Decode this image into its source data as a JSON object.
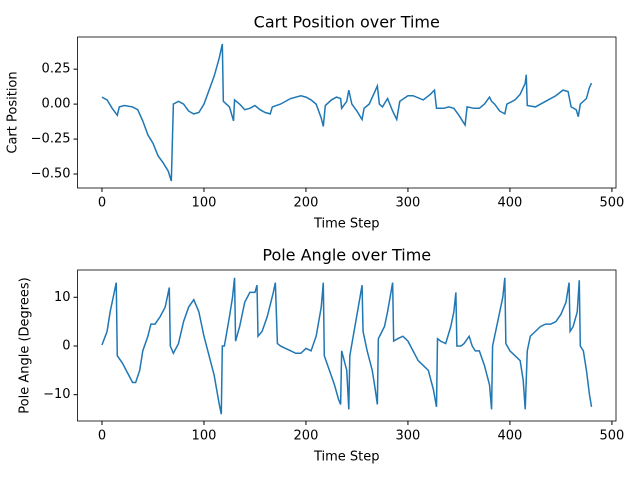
{
  "chart_data": [
    {
      "type": "line",
      "title": "Cart Position over Time",
      "x_label": "Time Step",
      "y_label": "Cart Position",
      "xlim": [
        -24,
        504
      ],
      "ylim": [
        -0.6,
        0.48
      ],
      "xticks": [
        0,
        100,
        200,
        300,
        400,
        500
      ],
      "yticks": [
        {
          "value": -0.5,
          "label": "−0.50"
        },
        {
          "value": -0.25,
          "label": "−0.25"
        },
        {
          "value": 0,
          "label": "0.00"
        },
        0.25
      ],
      "x": [
        0,
        5,
        10,
        15,
        17,
        22,
        30,
        35,
        40,
        45,
        50,
        55,
        60,
        65,
        68,
        70,
        75,
        80,
        85,
        90,
        95,
        100,
        105,
        110,
        115,
        118,
        119,
        125,
        129,
        130,
        135,
        140,
        145,
        150,
        155,
        160,
        165,
        167,
        175,
        185,
        195,
        200,
        205,
        210,
        215,
        217,
        219,
        225,
        230,
        234,
        235,
        240,
        242,
        245,
        250,
        255,
        257,
        262,
        267,
        270,
        272,
        275,
        280,
        285,
        289,
        292,
        300,
        305,
        315,
        322,
        326,
        328,
        335,
        340,
        345,
        350,
        356,
        358,
        365,
        370,
        375,
        380,
        382,
        385,
        390,
        395,
        397,
        405,
        410,
        415,
        416,
        417,
        425,
        435,
        445,
        452,
        457,
        460,
        465,
        467,
        469,
        475,
        478,
        480
      ],
      "series": [
        {
          "name": "Cart Position",
          "color": "#1f77b4",
          "values": [
            0.05,
            0.03,
            -0.03,
            -0.08,
            -0.02,
            -0.01,
            -0.02,
            -0.04,
            -0.12,
            -0.22,
            -0.28,
            -0.37,
            -0.42,
            -0.48,
            -0.55,
            0.0,
            0.02,
            0.0,
            -0.05,
            -0.07,
            -0.06,
            0.0,
            0.1,
            0.2,
            0.33,
            0.43,
            0.02,
            -0.02,
            -0.12,
            0.03,
            0.0,
            -0.04,
            -0.03,
            -0.01,
            -0.04,
            -0.06,
            -0.07,
            -0.02,
            0.0,
            0.04,
            0.06,
            0.05,
            0.03,
            0.0,
            -0.1,
            -0.16,
            -0.01,
            0.03,
            0.05,
            0.04,
            -0.03,
            0.02,
            0.1,
            0.0,
            -0.05,
            -0.11,
            -0.03,
            0.0,
            0.08,
            0.13,
            0.0,
            -0.02,
            0.04,
            -0.05,
            -0.11,
            0.02,
            0.06,
            0.06,
            0.03,
            0.07,
            0.1,
            -0.03,
            -0.03,
            -0.02,
            -0.03,
            -0.08,
            -0.15,
            -0.02,
            -0.03,
            -0.03,
            0.0,
            0.05,
            0.02,
            0.0,
            -0.05,
            -0.07,
            0.0,
            0.03,
            0.07,
            0.15,
            0.21,
            -0.01,
            -0.02,
            0.02,
            0.06,
            0.1,
            0.09,
            -0.02,
            -0.04,
            -0.09,
            0.0,
            0.04,
            0.12,
            0.15
          ]
        }
      ]
    },
    {
      "type": "line",
      "title": "Pole Angle over Time",
      "x_label": "Time Step",
      "y_label": "Pole Angle (Degrees)",
      "xlim": [
        -24,
        504
      ],
      "ylim": [
        -15.4,
        15.6
      ],
      "xticks": [
        0,
        100,
        200,
        300,
        400,
        500
      ],
      "yticks": [
        {
          "value": -10,
          "label": "−10"
        },
        0,
        10
      ],
      "x": [
        0,
        5,
        8,
        12,
        14,
        15,
        20,
        25,
        30,
        33,
        37,
        40,
        45,
        48,
        52,
        57,
        62,
        66,
        67,
        70,
        75,
        80,
        85,
        90,
        95,
        100,
        105,
        110,
        115,
        117,
        118,
        120,
        125,
        128,
        130,
        131,
        135,
        140,
        145,
        150,
        152,
        153,
        157,
        162,
        168,
        170,
        172,
        175,
        180,
        185,
        190,
        195,
        200,
        205,
        210,
        215,
        217,
        218,
        223,
        228,
        232,
        234,
        235,
        240,
        242,
        243,
        248,
        253,
        255,
        256,
        260,
        265,
        268,
        270,
        271,
        277,
        280,
        285,
        286,
        290,
        295,
        300,
        305,
        310,
        315,
        320,
        325,
        328,
        329,
        332,
        337,
        342,
        345,
        347,
        348,
        352,
        355,
        360,
        363,
        366,
        370,
        375,
        380,
        382,
        383,
        388,
        393,
        395,
        396,
        400,
        405,
        410,
        413,
        415,
        417,
        420,
        425,
        430,
        435,
        440,
        445,
        450,
        455,
        458,
        459,
        462,
        466,
        468,
        469,
        472,
        475,
        478,
        480
      ],
      "series": [
        {
          "name": "Pole Angle",
          "color": "#1f77b4",
          "values": [
            0.2,
            3,
            7,
            11,
            13,
            -2,
            -3.5,
            -5.5,
            -7.5,
            -7.5,
            -5,
            -1,
            2,
            4.5,
            4.5,
            6,
            8,
            12,
            0,
            -1.5,
            0.5,
            5,
            8,
            9.5,
            7,
            2,
            -2,
            -6,
            -12,
            -14,
            0,
            0,
            6,
            10,
            14,
            1,
            4,
            9,
            11,
            11,
            12.5,
            2,
            3,
            6,
            11,
            13,
            0.5,
            0,
            -0.5,
            -1,
            -1.5,
            -1.5,
            -0.5,
            -1,
            2,
            8,
            13,
            -2,
            -5,
            -8,
            -11,
            -12,
            -1,
            -5,
            -13,
            -2,
            4,
            10,
            12.5,
            3,
            -1,
            -5,
            -9,
            -12,
            1.5,
            4,
            7,
            13,
            1,
            1.5,
            2,
            1,
            -1,
            -3,
            -4,
            -5,
            -9,
            -12.5,
            1.5,
            1,
            0.5,
            4,
            7,
            11,
            0,
            0,
            0.5,
            2,
            0,
            -1,
            -1,
            -4,
            -8,
            -13,
            0,
            5,
            10,
            14,
            0.5,
            -1,
            -2,
            -3,
            -7,
            -13,
            -1,
            2,
            3,
            4,
            4.5,
            4.5,
            5,
            6.5,
            9,
            13,
            3,
            4,
            7,
            13.5,
            0,
            -1,
            -5,
            -10,
            -12.5
          ]
        }
      ]
    }
  ]
}
